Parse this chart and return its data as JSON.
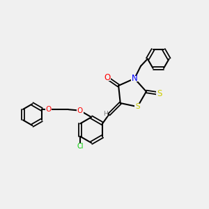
{
  "bg_color": "#f0f0f0",
  "bond_color": "#000000",
  "bond_lw": 1.5,
  "atom_colors": {
    "O": "#ff0000",
    "N": "#0000ff",
    "S": "#cccc00",
    "Cl": "#00cc00",
    "C": "#000000",
    "H": "#777777"
  },
  "font_size": 7.5,
  "font_size_small": 6.5
}
